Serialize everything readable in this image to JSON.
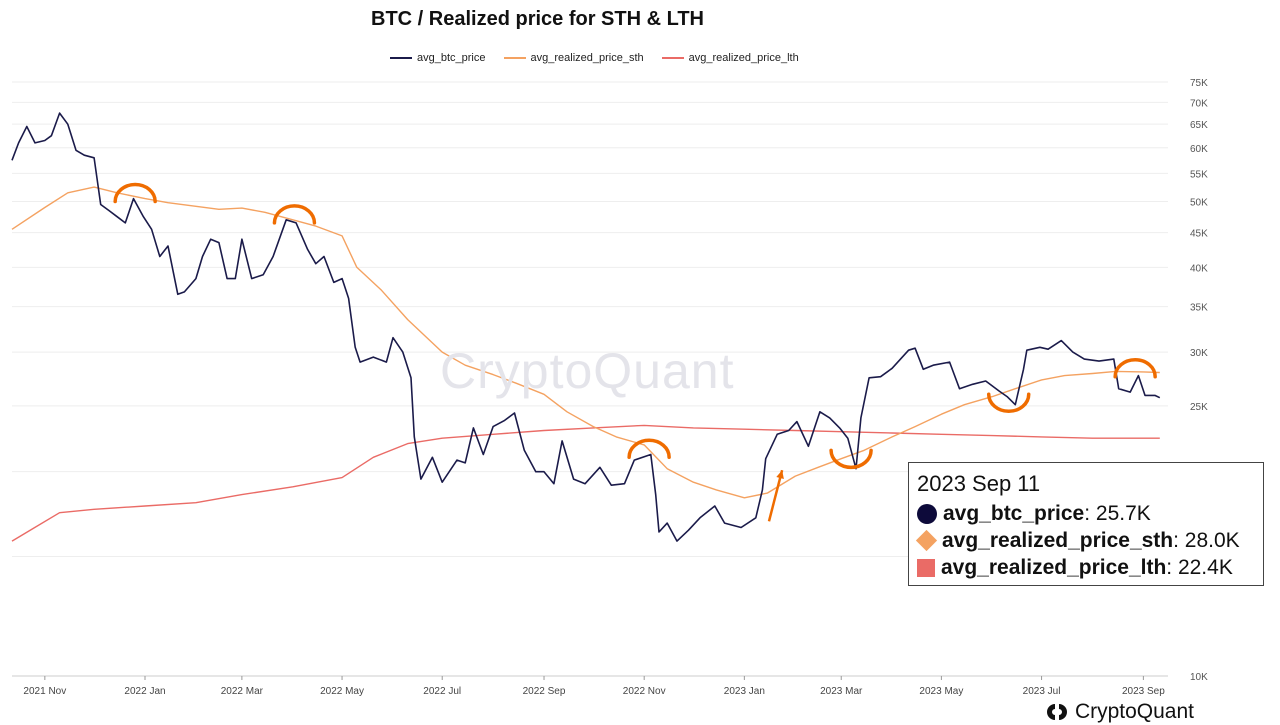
{
  "chart_data": {
    "type": "line",
    "title": "BTC / Realized price for STH & LTH",
    "xlabel": "",
    "ylabel": "",
    "y_scale": "log",
    "ylim": [
      10000,
      75000
    ],
    "yticks": [
      10000,
      25000,
      30000,
      35000,
      40000,
      45000,
      50000,
      55000,
      60000,
      65000,
      70000,
      75000
    ],
    "ytick_labels": [
      "10K",
      "25K",
      "30K",
      "35K",
      "40K",
      "45K",
      "50K",
      "55K",
      "60K",
      "65K",
      "70K",
      "75K"
    ],
    "xlim": [
      "2021-10-12",
      "2023-09-16"
    ],
    "x_ticks": [
      "2021-11-01",
      "2022-01-01",
      "2022-03-01",
      "2022-05-01",
      "2022-07-01",
      "2022-09-01",
      "2022-11-01",
      "2023-01-01",
      "2023-03-01",
      "2023-05-01",
      "2023-07-01",
      "2023-09-01"
    ],
    "x_tick_labels": [
      "2021 Nov",
      "2022 Jan",
      "2022 Mar",
      "2022 May",
      "2022 Jul",
      "2022 Sep",
      "2022 Nov",
      "2023 Jan",
      "2023 Mar",
      "2023 May",
      "2023 Jul",
      "2023 Sep"
    ],
    "legend_position": "top-center",
    "series": [
      {
        "name": "avg_btc_price",
        "color": "#1b1b4a",
        "points": [
          [
            "2021-10-12",
            57500
          ],
          [
            "2021-10-16",
            61000
          ],
          [
            "2021-10-21",
            64500
          ],
          [
            "2021-10-26",
            61000
          ],
          [
            "2021-11-01",
            61500
          ],
          [
            "2021-11-05",
            62500
          ],
          [
            "2021-11-10",
            67500
          ],
          [
            "2021-11-15",
            65000
          ],
          [
            "2021-11-20",
            59500
          ],
          [
            "2021-11-25",
            58500
          ],
          [
            "2021-12-01",
            58000
          ],
          [
            "2021-12-05",
            49500
          ],
          [
            "2021-12-10",
            48500
          ],
          [
            "2021-12-15",
            47500
          ],
          [
            "2021-12-20",
            46500
          ],
          [
            "2021-12-25",
            50500
          ],
          [
            "2021-12-31",
            47500
          ],
          [
            "2022-01-05",
            45500
          ],
          [
            "2022-01-10",
            41500
          ],
          [
            "2022-01-15",
            43000
          ],
          [
            "2022-01-21",
            36500
          ],
          [
            "2022-01-25",
            36800
          ],
          [
            "2022-02-01",
            38500
          ],
          [
            "2022-02-05",
            41500
          ],
          [
            "2022-02-10",
            44000
          ],
          [
            "2022-02-15",
            43500
          ],
          [
            "2022-02-20",
            38500
          ],
          [
            "2022-02-25",
            38500
          ],
          [
            "2022-03-01",
            44000
          ],
          [
            "2022-03-07",
            38500
          ],
          [
            "2022-03-14",
            39000
          ],
          [
            "2022-03-20",
            41500
          ],
          [
            "2022-03-28",
            47000
          ],
          [
            "2022-04-03",
            46500
          ],
          [
            "2022-04-10",
            42500
          ],
          [
            "2022-04-15",
            40500
          ],
          [
            "2022-04-20",
            41500
          ],
          [
            "2022-04-26",
            38000
          ],
          [
            "2022-05-01",
            38500
          ],
          [
            "2022-05-05",
            36000
          ],
          [
            "2022-05-09",
            30500
          ],
          [
            "2022-05-12",
            29000
          ],
          [
            "2022-05-20",
            29500
          ],
          [
            "2022-05-28",
            29000
          ],
          [
            "2022-06-01",
            31500
          ],
          [
            "2022-06-07",
            30000
          ],
          [
            "2022-06-12",
            27500
          ],
          [
            "2022-06-14",
            22500
          ],
          [
            "2022-06-18",
            19500
          ],
          [
            "2022-06-25",
            21000
          ],
          [
            "2022-07-01",
            19300
          ],
          [
            "2022-07-10",
            20800
          ],
          [
            "2022-07-15",
            20600
          ],
          [
            "2022-07-20",
            23200
          ],
          [
            "2022-07-26",
            21200
          ],
          [
            "2022-08-01",
            23300
          ],
          [
            "2022-08-08",
            23800
          ],
          [
            "2022-08-14",
            24400
          ],
          [
            "2022-08-20",
            21500
          ],
          [
            "2022-08-27",
            20000
          ],
          [
            "2022-09-01",
            20000
          ],
          [
            "2022-09-07",
            19200
          ],
          [
            "2022-09-12",
            22200
          ],
          [
            "2022-09-19",
            19500
          ],
          [
            "2022-09-26",
            19200
          ],
          [
            "2022-10-05",
            20300
          ],
          [
            "2022-10-12",
            19100
          ],
          [
            "2022-10-20",
            19200
          ],
          [
            "2022-10-26",
            20800
          ],
          [
            "2022-11-05",
            21200
          ],
          [
            "2022-11-08",
            18500
          ],
          [
            "2022-11-10",
            16300
          ],
          [
            "2022-11-15",
            16800
          ],
          [
            "2022-11-21",
            15800
          ],
          [
            "2022-11-28",
            16400
          ],
          [
            "2022-12-05",
            17100
          ],
          [
            "2022-12-14",
            17800
          ],
          [
            "2022-12-20",
            16800
          ],
          [
            "2022-12-30",
            16550
          ],
          [
            "2023-01-08",
            17100
          ],
          [
            "2023-01-12",
            18800
          ],
          [
            "2023-01-14",
            20900
          ],
          [
            "2023-01-21",
            22700
          ],
          [
            "2023-01-28",
            23000
          ],
          [
            "2023-02-02",
            23700
          ],
          [
            "2023-02-09",
            21800
          ],
          [
            "2023-02-16",
            24500
          ],
          [
            "2023-02-22",
            24000
          ],
          [
            "2023-02-28",
            23200
          ],
          [
            "2023-03-05",
            22400
          ],
          [
            "2023-03-10",
            20200
          ],
          [
            "2023-03-13",
            24000
          ],
          [
            "2023-03-18",
            27500
          ],
          [
            "2023-03-25",
            27600
          ],
          [
            "2023-04-01",
            28400
          ],
          [
            "2023-04-11",
            30200
          ],
          [
            "2023-04-15",
            30400
          ],
          [
            "2023-04-20",
            28300
          ],
          [
            "2023-04-26",
            28700
          ],
          [
            "2023-05-06",
            29000
          ],
          [
            "2023-05-12",
            26500
          ],
          [
            "2023-05-20",
            26900
          ],
          [
            "2023-05-28",
            27200
          ],
          [
            "2023-06-05",
            26300
          ],
          [
            "2023-06-10",
            25800
          ],
          [
            "2023-06-15",
            25100
          ],
          [
            "2023-06-20",
            28300
          ],
          [
            "2023-06-22",
            30200
          ],
          [
            "2023-06-30",
            30500
          ],
          [
            "2023-07-05",
            30300
          ],
          [
            "2023-07-13",
            31200
          ],
          [
            "2023-07-20",
            30000
          ],
          [
            "2023-07-27",
            29300
          ],
          [
            "2023-08-05",
            29100
          ],
          [
            "2023-08-14",
            29300
          ],
          [
            "2023-08-17",
            26500
          ],
          [
            "2023-08-24",
            26200
          ],
          [
            "2023-08-29",
            27700
          ],
          [
            "2023-09-02",
            25900
          ],
          [
            "2023-09-08",
            25900
          ],
          [
            "2023-09-11",
            25700
          ]
        ]
      },
      {
        "name": "avg_realized_price_sth",
        "color": "#f4a261",
        "points": [
          [
            "2021-10-12",
            45500
          ],
          [
            "2021-11-01",
            49000
          ],
          [
            "2021-11-15",
            51500
          ],
          [
            "2021-12-01",
            52500
          ],
          [
            "2021-12-15",
            51500
          ],
          [
            "2022-01-01",
            50500
          ],
          [
            "2022-01-15",
            49800
          ],
          [
            "2022-02-01",
            49200
          ],
          [
            "2022-02-15",
            48700
          ],
          [
            "2022-03-01",
            48900
          ],
          [
            "2022-03-15",
            48200
          ],
          [
            "2022-04-01",
            47000
          ],
          [
            "2022-04-15",
            46000
          ],
          [
            "2022-05-01",
            44500
          ],
          [
            "2022-05-10",
            40000
          ],
          [
            "2022-05-25",
            37000
          ],
          [
            "2022-06-10",
            33500
          ],
          [
            "2022-07-01",
            30000
          ],
          [
            "2022-07-15",
            28700
          ],
          [
            "2022-08-01",
            27800
          ],
          [
            "2022-08-15",
            27000
          ],
          [
            "2022-09-01",
            26000
          ],
          [
            "2022-09-15",
            24500
          ],
          [
            "2022-10-01",
            23300
          ],
          [
            "2022-10-15",
            22500
          ],
          [
            "2022-11-01",
            21900
          ],
          [
            "2022-11-15",
            20200
          ],
          [
            "2022-12-01",
            19300
          ],
          [
            "2022-12-15",
            18800
          ],
          [
            "2023-01-01",
            18300
          ],
          [
            "2023-01-15",
            18600
          ],
          [
            "2023-02-01",
            19700
          ],
          [
            "2023-02-15",
            20300
          ],
          [
            "2023-03-01",
            20900
          ],
          [
            "2023-03-15",
            21500
          ],
          [
            "2023-04-01",
            22500
          ],
          [
            "2023-04-15",
            23300
          ],
          [
            "2023-05-01",
            24300
          ],
          [
            "2023-05-15",
            25100
          ],
          [
            "2023-06-01",
            25800
          ],
          [
            "2023-06-15",
            26500
          ],
          [
            "2023-07-01",
            27300
          ],
          [
            "2023-07-15",
            27700
          ],
          [
            "2023-08-01",
            27900
          ],
          [
            "2023-08-15",
            28100
          ],
          [
            "2023-09-01",
            28050
          ],
          [
            "2023-09-11",
            28000
          ]
        ]
      },
      {
        "name": "avg_realized_price_lth",
        "color": "#ea6b66",
        "points": [
          [
            "2021-10-12",
            15800
          ],
          [
            "2021-10-25",
            16500
          ],
          [
            "2021-11-10",
            17400
          ],
          [
            "2021-12-01",
            17600
          ],
          [
            "2022-01-01",
            17800
          ],
          [
            "2022-02-01",
            18000
          ],
          [
            "2022-03-01",
            18500
          ],
          [
            "2022-04-01",
            19000
          ],
          [
            "2022-05-01",
            19600
          ],
          [
            "2022-05-20",
            21000
          ],
          [
            "2022-06-10",
            22000
          ],
          [
            "2022-07-01",
            22400
          ],
          [
            "2022-08-01",
            22700
          ],
          [
            "2022-09-01",
            23000
          ],
          [
            "2022-10-01",
            23200
          ],
          [
            "2022-11-01",
            23400
          ],
          [
            "2022-12-01",
            23200
          ],
          [
            "2023-01-01",
            23100
          ],
          [
            "2023-02-01",
            23000
          ],
          [
            "2023-03-01",
            22900
          ],
          [
            "2023-04-01",
            22800
          ],
          [
            "2023-05-01",
            22700
          ],
          [
            "2023-06-01",
            22600
          ],
          [
            "2023-07-01",
            22500
          ],
          [
            "2023-08-01",
            22400
          ],
          [
            "2023-09-11",
            22400
          ]
        ]
      }
    ],
    "annotations": {
      "arcs": [
        {
          "date": "2021-12-26",
          "value": 50000,
          "shape": "peak"
        },
        {
          "date": "2022-04-02",
          "value": 46500,
          "shape": "peak"
        },
        {
          "date": "2022-11-04",
          "value": 21000,
          "shape": "peak"
        },
        {
          "date": "2023-03-07",
          "value": 21500,
          "shape": "trough"
        },
        {
          "date": "2023-06-11",
          "value": 26000,
          "shape": "trough"
        },
        {
          "date": "2023-08-27",
          "value": 27600,
          "shape": "peak"
        }
      ],
      "arrows": [
        {
          "from": [
            "2023-01-16",
            16900
          ],
          "to": [
            "2023-01-24",
            20100
          ]
        }
      ],
      "color": "#ef6c00"
    }
  },
  "legend": {
    "items": [
      {
        "label": "avg_btc_price",
        "color": "#1b1b4a"
      },
      {
        "label": "avg_realized_price_sth",
        "color": "#f4a261"
      },
      {
        "label": "avg_realized_price_lth",
        "color": "#ea6b66"
      }
    ]
  },
  "tooltip": {
    "date": "2023 Sep 11",
    "rows": [
      {
        "name": "avg_btc_price",
        "value": ": 25.7K",
        "color": "#0d0a3a"
      },
      {
        "name": "avg_realized_price_sth",
        "value": ": 28.0K",
        "color": "#f4a261"
      },
      {
        "name": "avg_realized_price_lth",
        "value": ": 22.4K",
        "color": "#ea6b66"
      }
    ]
  },
  "watermark": "CryptoQuant",
  "brand": {
    "name": "CryptoQuant"
  }
}
